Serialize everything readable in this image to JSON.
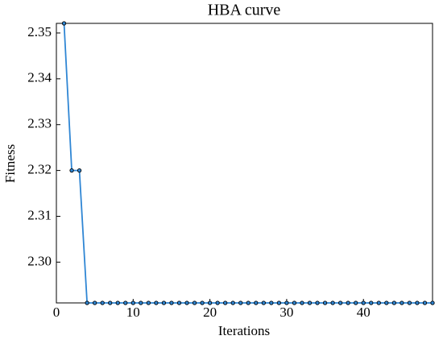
{
  "chart_data": {
    "type": "line",
    "title": "HBA curve",
    "x_label": "Iterations",
    "y_label": "Fitness",
    "x": [
      1,
      2,
      3,
      4,
      5,
      6,
      7,
      8,
      9,
      10,
      11,
      12,
      13,
      14,
      15,
      16,
      17,
      18,
      19,
      20,
      21,
      22,
      23,
      24,
      25,
      26,
      27,
      28,
      29,
      30,
      31,
      32,
      33,
      34,
      35,
      36,
      37,
      38,
      39,
      40,
      41,
      42,
      43,
      44,
      45,
      46,
      47,
      48,
      49
    ],
    "series": [
      {
        "name": "HBA",
        "color": "#2f86d4",
        "values": [
          2.3521,
          2.32,
          2.32,
          2.2911,
          2.2911,
          2.2911,
          2.2911,
          2.2911,
          2.2911,
          2.2911,
          2.2911,
          2.2911,
          2.2911,
          2.2911,
          2.2911,
          2.2911,
          2.2911,
          2.2911,
          2.2911,
          2.2911,
          2.2911,
          2.2911,
          2.2911,
          2.2911,
          2.2911,
          2.2911,
          2.2911,
          2.2911,
          2.2911,
          2.2911,
          2.2911,
          2.2911,
          2.2911,
          2.2911,
          2.2911,
          2.2911,
          2.2911,
          2.2911,
          2.2911,
          2.2911,
          2.2911,
          2.2911,
          2.2911,
          2.2911,
          2.2911,
          2.2911,
          2.2911,
          2.2911,
          2.2911
        ]
      }
    ],
    "xlim": [
      0,
      49
    ],
    "xticks": [
      0,
      10,
      20,
      30,
      40
    ],
    "ylim": [
      2.2911,
      2.3521
    ],
    "yticks": [
      {
        "value": 2.3,
        "label": "2.30"
      },
      2.31,
      2.32,
      2.33,
      2.34,
      2.35
    ],
    "grid": false
  }
}
